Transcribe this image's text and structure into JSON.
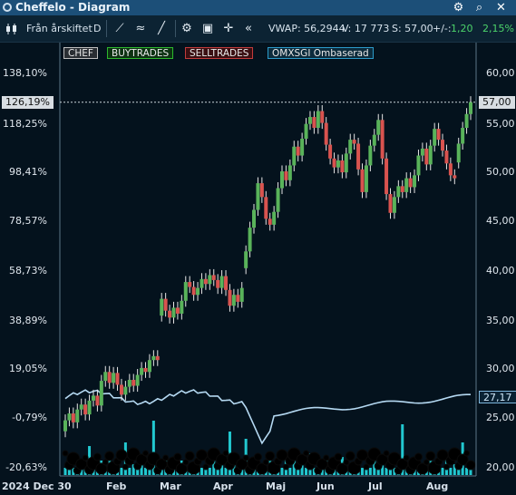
{
  "window": {
    "title": "Cheffelo - Diagram"
  },
  "toolbar": {
    "period": "Från årskiftet",
    "interval": "D",
    "vwap": "VWAP: 56,2944",
    "volume": "V: 17 773",
    "last": "S: 57,00",
    "change_label": "+/-:",
    "change_abs": "1,20",
    "change_pct": "2,15%"
  },
  "legend": [
    {
      "label": "CHEF",
      "color": "#bfbfbf"
    },
    {
      "label": "BUYTRADES",
      "color": "#2db82d"
    },
    {
      "label": "SELLTRADES",
      "color": "#c23b3b"
    },
    {
      "label": "OMXSGI Ombaserad",
      "color": "#2b9ac9"
    }
  ],
  "chart_data": {
    "type": "candlestick",
    "series": [
      {
        "name": "CHEF",
        "last": 57.0
      },
      {
        "name": "OMXSGI Ombaserad",
        "last": 27.17
      }
    ],
    "left_axis_pct": [
      "138,10%",
      "118,25%",
      "98,41%",
      "78,57%",
      "58,73%",
      "38,89%",
      "19,05%",
      "-0,79%",
      "-20,63%"
    ],
    "right_axis": [
      "60,00",
      "55,00",
      "50,00",
      "45,00",
      "40,00",
      "35,00",
      "30,00",
      "25,00",
      "20,00"
    ],
    "x_labels": [
      "2024 Dec 30",
      "Feb",
      "Mar",
      "Apr",
      "Maj",
      "Jun",
      "Jul",
      "Aug"
    ],
    "current_pct_label": "126,19%",
    "current_price_label": "57,00",
    "index_label": "27,17",
    "ylim_price": [
      20,
      60
    ],
    "colors": {
      "up": "#59b35a",
      "down": "#d9534f",
      "volume": "#22c8d0",
      "index": "#b5d9f2",
      "dots": "#000000"
    },
    "candles": [
      [
        23.7,
        24.8
      ],
      [
        24.8,
        25.5
      ],
      [
        25.5,
        24.6
      ],
      [
        24.6,
        25.9
      ],
      [
        25.9,
        26.4
      ],
      [
        26.4,
        25.4
      ],
      [
        25.4,
        26.8
      ],
      [
        26.8,
        27.3
      ],
      [
        27.3,
        26.3
      ],
      [
        26.3,
        28.8
      ],
      [
        28.8,
        29.7
      ],
      [
        29.7,
        28.6
      ],
      [
        28.6,
        29.6
      ],
      [
        29.6,
        28.4
      ],
      [
        28.4,
        27.4
      ],
      [
        27.4,
        28.2
      ],
      [
        28.2,
        28.9
      ],
      [
        28.9,
        28.3
      ],
      [
        28.3,
        29.4
      ],
      [
        29.4,
        30.1
      ],
      [
        30.1,
        29.7
      ],
      [
        29.7,
        30.9
      ],
      [
        30.9,
        31.3
      ],
      [
        31.3,
        30.9
      ],
      [
        35.4,
        37.1
      ],
      [
        37.1,
        35.9
      ],
      [
        35.9,
        35.2
      ],
      [
        35.2,
        36.2
      ],
      [
        36.2,
        35.6
      ],
      [
        35.6,
        36.9
      ],
      [
        36.9,
        38.8
      ],
      [
        38.8,
        38.3
      ],
      [
        38.3,
        37.5
      ],
      [
        37.5,
        38.2
      ],
      [
        38.2,
        39.1
      ],
      [
        39.1,
        38.6
      ],
      [
        38.6,
        39.5
      ],
      [
        39.5,
        39.0
      ],
      [
        39.0,
        38.2
      ],
      [
        38.2,
        39.4
      ],
      [
        39.4,
        38.0
      ],
      [
        38.0,
        36.4
      ],
      [
        36.4,
        37.5
      ],
      [
        37.5,
        36.8
      ],
      [
        36.8,
        38.2
      ],
      [
        40.2,
        41.9
      ],
      [
        41.9,
        44.3
      ],
      [
        44.3,
        46.1
      ],
      [
        46.1,
        48.8
      ],
      [
        48.8,
        47.4
      ],
      [
        47.4,
        45.2
      ],
      [
        45.2,
        44.6
      ],
      [
        44.6,
        45.9
      ],
      [
        45.9,
        48.3
      ],
      [
        48.3,
        50.0
      ],
      [
        50.0,
        49.1
      ],
      [
        49.1,
        50.6
      ],
      [
        50.6,
        52.5
      ],
      [
        52.5,
        51.6
      ],
      [
        51.6,
        53.3
      ],
      [
        53.3,
        54.8
      ],
      [
        54.8,
        55.5
      ],
      [
        55.5,
        54.4
      ],
      [
        54.4,
        56.1
      ],
      [
        56.1,
        54.9
      ],
      [
        54.9,
        52.7
      ],
      [
        52.7,
        51.3
      ],
      [
        51.3,
        50.4
      ],
      [
        50.4,
        51.1
      ],
      [
        51.1,
        49.9
      ],
      [
        49.9,
        51.8
      ],
      [
        51.8,
        53.2
      ],
      [
        53.2,
        52.8
      ],
      [
        52.8,
        50.2
      ],
      [
        50.2,
        47.9
      ],
      [
        47.9,
        50.6
      ],
      [
        50.6,
        52.6
      ],
      [
        52.6,
        53.7
      ],
      [
        53.7,
        55.2
      ],
      [
        55.2,
        51.3
      ],
      [
        51.3,
        47.7
      ],
      [
        47.7,
        45.8
      ],
      [
        45.8,
        47.4
      ],
      [
        47.4,
        48.5
      ],
      [
        48.5,
        47.9
      ],
      [
        47.9,
        49.3
      ],
      [
        49.3,
        48.4
      ],
      [
        48.4,
        49.6
      ],
      [
        49.6,
        51.6
      ],
      [
        51.6,
        52.3
      ],
      [
        52.3,
        50.7
      ],
      [
        50.7,
        52.6
      ],
      [
        52.6,
        54.3
      ],
      [
        54.3,
        53.2
      ],
      [
        53.2,
        52.1
      ],
      [
        52.1,
        50.8
      ],
      [
        50.8,
        49.6
      ],
      [
        49.6,
        49.3
      ],
      [
        50.9,
        52.8
      ],
      [
        52.8,
        54.4
      ],
      [
        54.4,
        55.8
      ],
      [
        55.8,
        57.0
      ]
    ]
  }
}
